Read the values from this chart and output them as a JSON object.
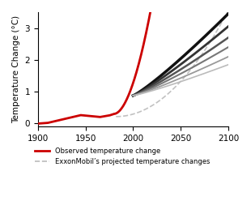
{
  "title": "",
  "ylabel": "Temperature Change (°C)",
  "xlabel": "",
  "xlim": [
    1900,
    2100
  ],
  "ylim": [
    -0.1,
    3.5
  ],
  "xticks": [
    1900,
    1950,
    2000,
    2050,
    2100
  ],
  "yticks": [
    0,
    1,
    2,
    3
  ],
  "bg_color": "#ffffff",
  "observed_color": "#cc0000",
  "observed_linewidth": 2.0,
  "legend_observed_label": "Observed temperature change",
  "legend_exxon_label": "ExxonMobil’s projected temperature changes",
  "exxon_dashed_color": "#bbbbbb",
  "exxon_solid_colors": [
    "#111111",
    "#333333",
    "#555555",
    "#777777",
    "#999999",
    "#bbbbbb"
  ],
  "exxon_solid_lw": [
    2.5,
    2.0,
    1.8,
    1.5,
    1.3,
    1.2
  ],
  "exxon_dashed_lw": 1.2
}
